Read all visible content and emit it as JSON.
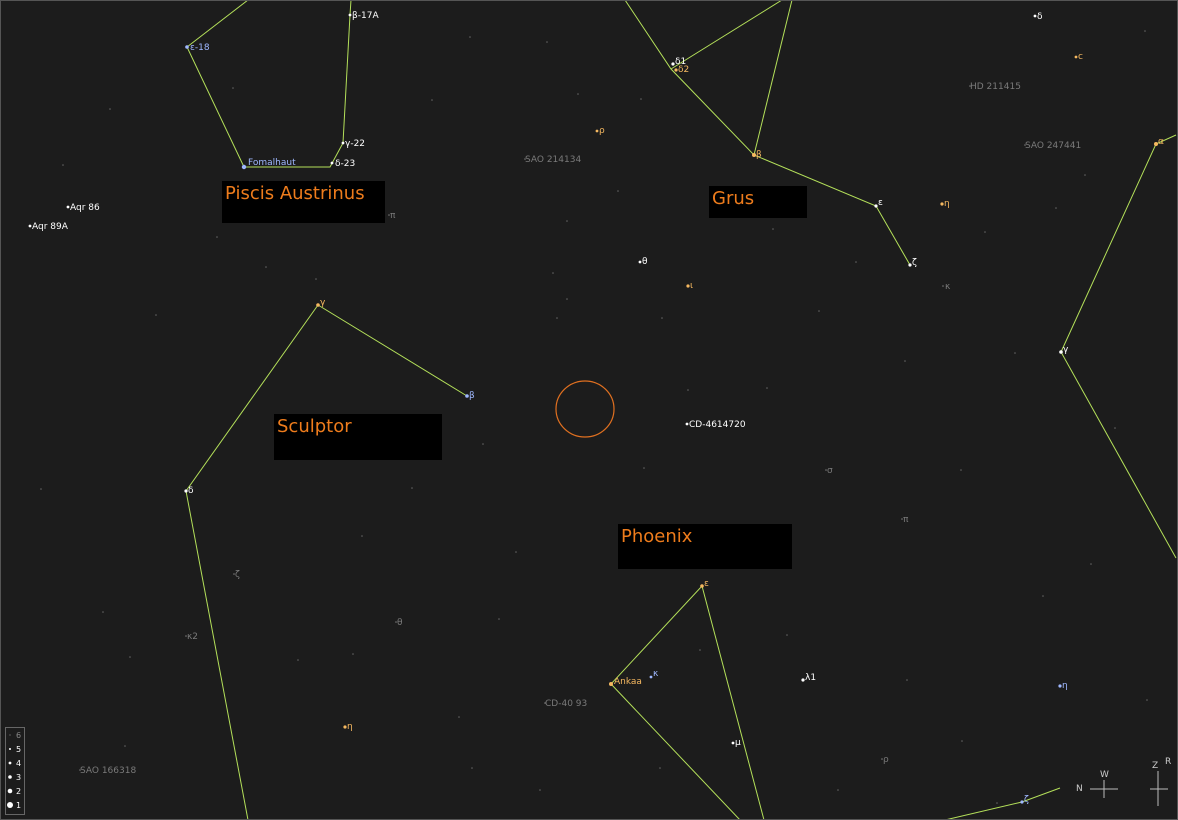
{
  "colors": {
    "background": "#1c1c1c",
    "constellation_line": "#b4e05a",
    "constellation_label": "#ee7c1c",
    "target_circle": "#e07020",
    "star_white": "#ffffff",
    "star_blue": "#9fb8ff",
    "star_orange": "#f5b860",
    "faint_label": "#7a7a7a"
  },
  "constellations": {
    "piscis_austrinus": "Piscis Austrinus",
    "grus": "Grus",
    "sculptor": "Sculptor",
    "phoenix": "Phoenix"
  },
  "stars": [
    {
      "label": "ε-18",
      "tone": "blue"
    },
    {
      "label": "β-17A",
      "tone": "white"
    },
    {
      "label": "Fomalhaut",
      "tone": "blue"
    },
    {
      "label": "γ-22",
      "tone": "white"
    },
    {
      "label": "δ-23",
      "tone": "white"
    },
    {
      "label": "π",
      "tone": "faint"
    },
    {
      "label": "Aqr 86",
      "tone": "white"
    },
    {
      "label": "Aqr 89A",
      "tone": "white"
    },
    {
      "label": "SAO 214134",
      "tone": "faint"
    },
    {
      "label": "ρ",
      "tone": "orange"
    },
    {
      "label": "θ",
      "tone": "white"
    },
    {
      "label": "ι",
      "tone": "orange"
    },
    {
      "label": "δ1",
      "tone": "white"
    },
    {
      "label": "δ2",
      "tone": "orange"
    },
    {
      "label": "β",
      "tone": "orange"
    },
    {
      "label": "ε",
      "tone": "white"
    },
    {
      "label": "ζ",
      "tone": "white"
    },
    {
      "label": "η",
      "tone": "orange"
    },
    {
      "label": "κ",
      "tone": "faint"
    },
    {
      "label": "δ",
      "tone": "white"
    },
    {
      "label": "c",
      "tone": "orange"
    },
    {
      "label": "HD 211415",
      "tone": "faint"
    },
    {
      "label": "SAO 247441",
      "tone": "faint"
    },
    {
      "label": "α",
      "tone": "orange"
    },
    {
      "label": "γ",
      "tone": "white"
    },
    {
      "label": "γ",
      "tone": "orange"
    },
    {
      "label": "β",
      "tone": "blue"
    },
    {
      "label": "δ",
      "tone": "white"
    },
    {
      "label": "ζ",
      "tone": "faint"
    },
    {
      "label": "κ2",
      "tone": "faint"
    },
    {
      "label": "θ",
      "tone": "faint"
    },
    {
      "label": "η",
      "tone": "orange"
    },
    {
      "label": "SAO 166318",
      "tone": "faint"
    },
    {
      "label": "CD-4614720",
      "tone": "white"
    },
    {
      "label": "σ",
      "tone": "faint"
    },
    {
      "label": "π",
      "tone": "faint"
    },
    {
      "label": "ε",
      "tone": "orange"
    },
    {
      "label": "Ankaa",
      "tone": "orange"
    },
    {
      "label": "κ",
      "tone": "blue"
    },
    {
      "label": "CD-40 93",
      "tone": "faint"
    },
    {
      "label": "λ1",
      "tone": "white"
    },
    {
      "label": "μ",
      "tone": "white"
    },
    {
      "label": "ρ",
      "tone": "faint"
    },
    {
      "label": "η",
      "tone": "blue"
    },
    {
      "label": "ζ",
      "tone": "blue"
    }
  ],
  "magnitude_legend": [
    "6",
    "5",
    "4",
    "3",
    "2",
    "1"
  ],
  "compass": {
    "north": "N",
    "west": "W",
    "zenith": "Z",
    "right": "R"
  }
}
